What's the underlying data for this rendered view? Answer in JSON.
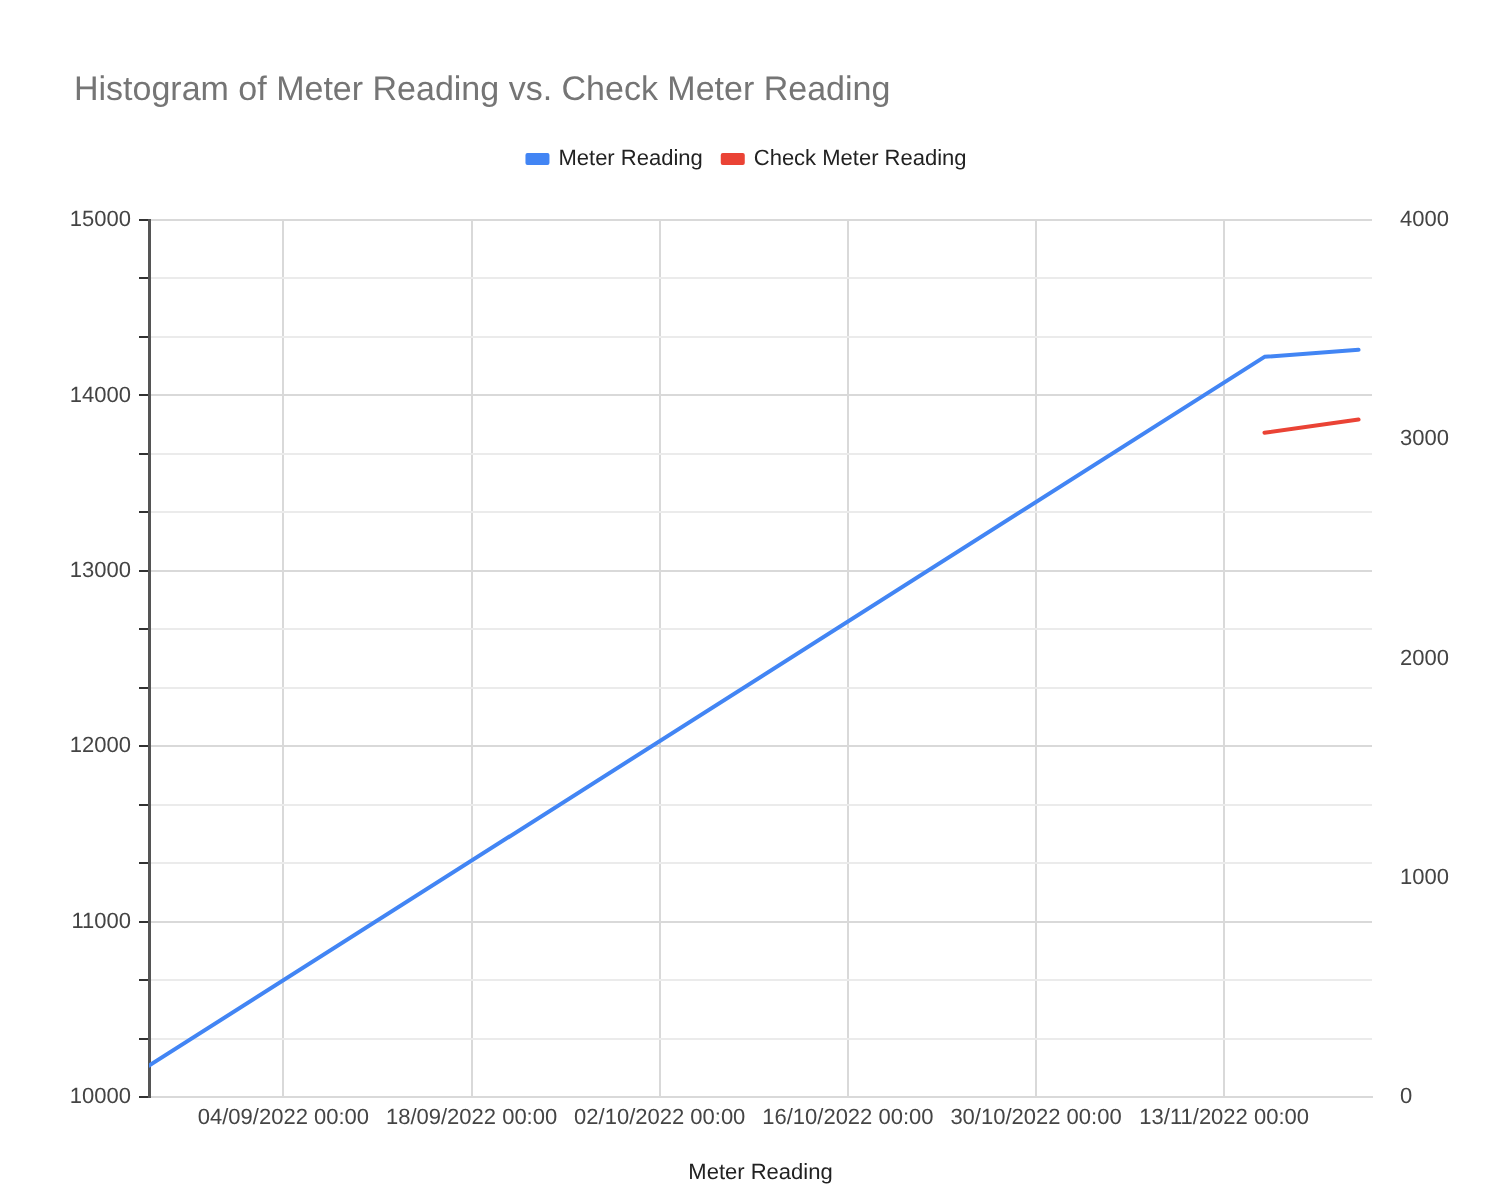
{
  "chart_data": {
    "type": "line",
    "title": "Histogram of Meter Reading vs. Check Meter Reading",
    "xlabel": "Meter Reading",
    "series": [
      {
        "name": "Meter Reading",
        "color": "#4285f4",
        "x": [
          "2022-08-25",
          "2022-11-16",
          "2022-11-23"
        ],
        "values": [
          10180,
          14220,
          14260
        ]
      },
      {
        "name": "Check Meter Reading",
        "color": "#ea4335",
        "axis": "y2",
        "x": [
          "2022-11-16",
          "2022-11-23"
        ],
        "values": [
          3030,
          3090
        ]
      }
    ],
    "xlim": [
      "2022-08-25",
      "2022-11-24"
    ],
    "xticks": [
      {
        "value": "2022-09-04",
        "label": "04/09/2022 00:00"
      },
      {
        "value": "2022-09-18",
        "label": "18/09/2022 00:00"
      },
      {
        "value": "2022-10-02",
        "label": "02/10/2022 00:00"
      },
      {
        "value": "2022-10-16",
        "label": "16/10/2022 00:00"
      },
      {
        "value": "2022-10-30",
        "label": "30/10/2022 00:00"
      },
      {
        "value": "2022-11-13",
        "label": "13/11/2022 00:00"
      }
    ],
    "ylim": [
      10000,
      15000
    ],
    "yticks": [
      10000,
      {
        "value": 10333.33,
        "label": null
      },
      {
        "value": 10666.67,
        "label": null
      },
      11000,
      {
        "value": 11333.33,
        "label": null
      },
      {
        "value": 11666.67,
        "label": null
      },
      12000,
      {
        "value": 12333.33,
        "label": null
      },
      {
        "value": 12666.67,
        "label": null
      },
      13000,
      {
        "value": 13333.33,
        "label": null
      },
      {
        "value": 13666.67,
        "label": null
      },
      14000,
      {
        "value": 14333.33,
        "label": null
      },
      {
        "value": 14666.67,
        "label": null
      },
      15000
    ],
    "y2lim": [
      0,
      4000
    ],
    "y2ticks": [
      0,
      1000,
      2000,
      3000,
      4000
    ],
    "grid": true,
    "legend": "top",
    "marker": "none",
    "line_style": "solid"
  }
}
